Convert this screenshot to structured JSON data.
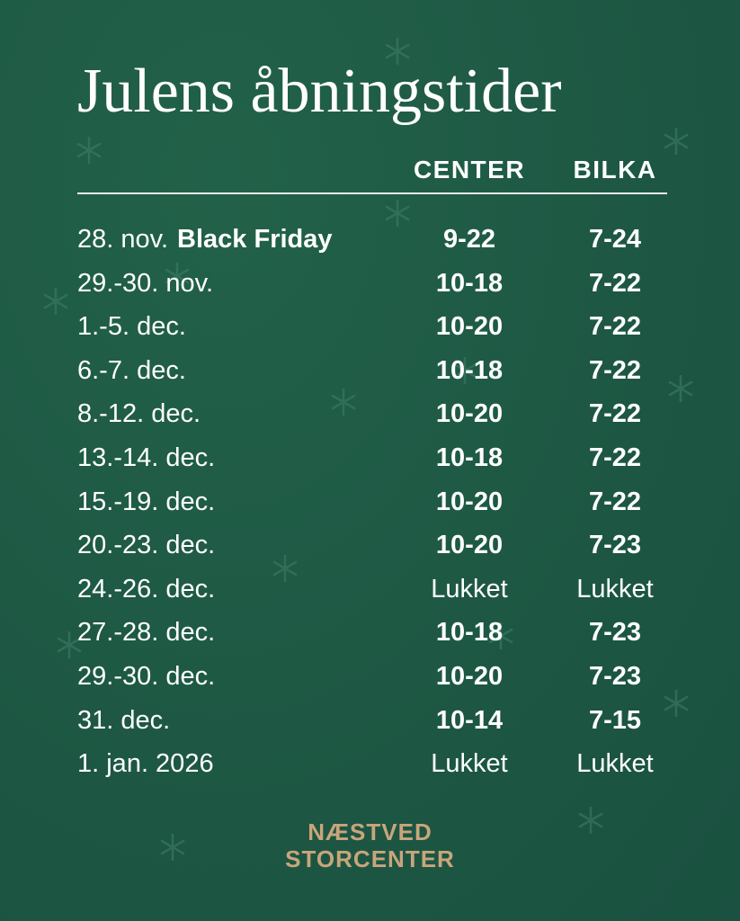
{
  "title": "Julens åbningstider",
  "columns": {
    "center": "CENTER",
    "bilka": "BILKA"
  },
  "rows": [
    {
      "date": "28. nov.",
      "note": "Black Friday",
      "center": "9-22",
      "bilka": "7-24"
    },
    {
      "date": "29.-30. nov.",
      "center": "10-18",
      "bilka": "7-22"
    },
    {
      "date": "1.-5. dec.",
      "center": "10-20",
      "bilka": "7-22"
    },
    {
      "date": "6.-7. dec.",
      "center": "10-18",
      "bilka": "7-22"
    },
    {
      "date": "8.-12. dec.",
      "center": "10-20",
      "bilka": "7-22"
    },
    {
      "date": "13.-14. dec.",
      "center": "10-18",
      "bilka": "7-22"
    },
    {
      "date": "15.-19. dec.",
      "center": "10-20",
      "bilka": "7-22"
    },
    {
      "date": "20.-23. dec.",
      "center": "10-20",
      "bilka": "7-23"
    },
    {
      "date": "24.-26. dec.",
      "center": "Lukket",
      "bilka": "Lukket"
    },
    {
      "date": "27.-28. dec.",
      "center": "10-18",
      "bilka": "7-23"
    },
    {
      "date": "29.-30. dec.",
      "center": "10-20",
      "bilka": "7-23"
    },
    {
      "date": "31. dec.",
      "center": "10-14",
      "bilka": "7-15"
    },
    {
      "date": "1. jan. 2026",
      "center": "Lukket",
      "bilka": "Lukket"
    }
  ],
  "logo": {
    "line1": "NÆSTVED",
    "line2": "STORCENTER"
  },
  "colors": {
    "background": "#1e5a45",
    "text": "#ffffff",
    "logo": "#c9a57c",
    "snowflake": "#3f7f6c"
  },
  "decoration_icon": "snowflake-icon"
}
